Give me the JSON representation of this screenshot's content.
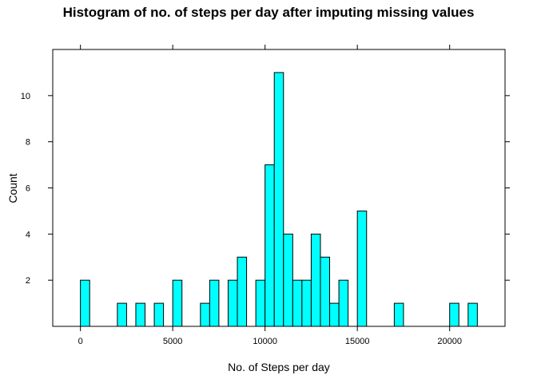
{
  "chart_data": {
    "type": "bar",
    "title": "Histogram of no. of steps per day after imputing missing values",
    "xlabel": "No. of Steps per day",
    "ylabel": "Count",
    "bin_width": 500,
    "bins": [
      {
        "x0": 0,
        "x1": 500,
        "count": 2
      },
      {
        "x0": 2000,
        "x1": 2500,
        "count": 1
      },
      {
        "x0": 3000,
        "x1": 3500,
        "count": 1
      },
      {
        "x0": 4000,
        "x1": 4500,
        "count": 1
      },
      {
        "x0": 5000,
        "x1": 5500,
        "count": 2
      },
      {
        "x0": 6500,
        "x1": 7000,
        "count": 1
      },
      {
        "x0": 7000,
        "x1": 7500,
        "count": 2
      },
      {
        "x0": 8000,
        "x1": 8500,
        "count": 2
      },
      {
        "x0": 8500,
        "x1": 9000,
        "count": 3
      },
      {
        "x0": 9500,
        "x1": 10000,
        "count": 2
      },
      {
        "x0": 10000,
        "x1": 10500,
        "count": 7
      },
      {
        "x0": 10500,
        "x1": 11000,
        "count": 11
      },
      {
        "x0": 11000,
        "x1": 11500,
        "count": 4
      },
      {
        "x0": 11500,
        "x1": 12000,
        "count": 2
      },
      {
        "x0": 12000,
        "x1": 12500,
        "count": 2
      },
      {
        "x0": 12500,
        "x1": 13000,
        "count": 4
      },
      {
        "x0": 13000,
        "x1": 13500,
        "count": 3
      },
      {
        "x0": 13500,
        "x1": 14000,
        "count": 1
      },
      {
        "x0": 14000,
        "x1": 14500,
        "count": 2
      },
      {
        "x0": 15000,
        "x1": 15500,
        "count": 5
      },
      {
        "x0": 17000,
        "x1": 17500,
        "count": 1
      },
      {
        "x0": 20000,
        "x1": 20500,
        "count": 1
      },
      {
        "x0": 21000,
        "x1": 21500,
        "count": 1
      }
    ],
    "xlim": [
      -1500,
      23000
    ],
    "ylim": [
      0,
      12
    ],
    "x_ticks": [
      0,
      5000,
      10000,
      15000,
      20000
    ],
    "x_tick_labels": [
      "0",
      "5000",
      "10000",
      "15000",
      "20000"
    ],
    "y_ticks": [
      2,
      4,
      6,
      8,
      10
    ],
    "y_tick_labels": [
      "2",
      "4",
      "6",
      "8",
      "10"
    ],
    "bar_color": "#00ffff",
    "bar_edge_color": "#000000",
    "grid": false
  }
}
